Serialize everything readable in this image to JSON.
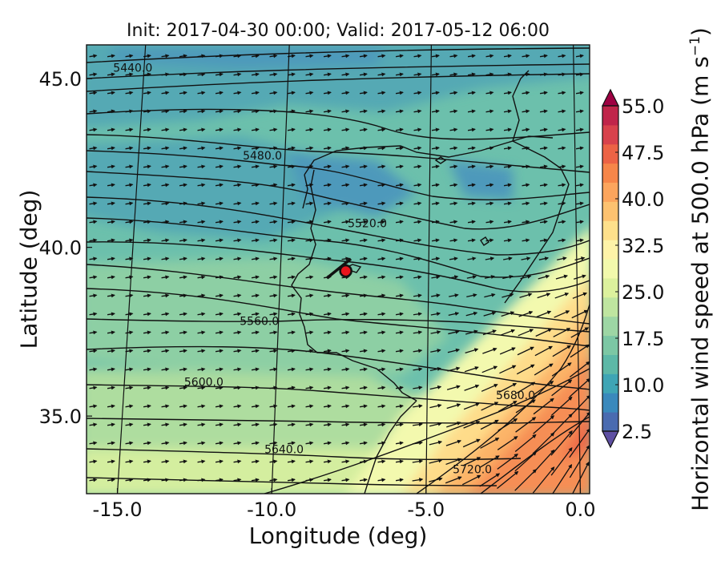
{
  "title": "Init: 2017-04-30 00:00; Valid: 2017-05-12 06:00",
  "xlabel": "Longitude (deg)",
  "ylabel": "Latitude (deg)",
  "colorbar": {
    "label_main": "Horizontal wind speed at 500.0 hPa (m s",
    "label_exp": "−1",
    "label_close": ")",
    "range": [
      2.5,
      55.0
    ],
    "tick_values": [
      2.5,
      10.0,
      17.5,
      25.0,
      32.5,
      40.0,
      47.5,
      55.0
    ],
    "tick_labels": [
      "2.5",
      "10.0",
      "17.5",
      "25.0",
      "32.5",
      "40.0",
      "47.5",
      "55.0"
    ],
    "extend": "both",
    "colors": [
      "#5e4fa2",
      "#4a6bb0",
      "#3a89bc",
      "#3fa5b5",
      "#5db8a7",
      "#7cc7a4",
      "#9dd6a4",
      "#bfe5a0",
      "#dcf19d",
      "#f2f9ac",
      "#fef3a8",
      "#fee08b",
      "#fdc270",
      "#fca55d",
      "#f68649",
      "#ec6345",
      "#d8424c",
      "#c0254a",
      "#9e0142"
    ]
  },
  "map": {
    "x_ticks": [
      -15.0,
      -10.0,
      -5.0,
      0.0
    ],
    "x_tick_labels": [
      "-15.0",
      "-10.0",
      "-5.0",
      "0.0"
    ],
    "y_ticks": [
      35.0,
      40.0,
      45.0
    ],
    "y_tick_labels": [
      "35.0",
      "40.0",
      "45.0"
    ],
    "xlim": [
      -16.0,
      0.3
    ],
    "ylim": [
      32.7,
      46.0
    ],
    "contour_labels": [
      {
        "text": "5440.0",
        "lon": -14.5,
        "lat": 45.2
      },
      {
        "text": "5480.0",
        "lon": -10.3,
        "lat": 42.6
      },
      {
        "text": "5520.0",
        "lon": -6.9,
        "lat": 40.6
      },
      {
        "text": "5560.0",
        "lon": -10.4,
        "lat": 37.7
      },
      {
        "text": "5600.0",
        "lon": -12.2,
        "lat": 35.9
      },
      {
        "text": "5640.0",
        "lon": -9.6,
        "lat": 33.9
      },
      {
        "text": "5680.0",
        "lon": -2.1,
        "lat": 35.5
      },
      {
        "text": "5720.0",
        "lon": -3.5,
        "lat": 33.3
      }
    ],
    "marker": {
      "lon": -7.6,
      "lat": 39.3,
      "color": "#e8141c"
    }
  }
}
